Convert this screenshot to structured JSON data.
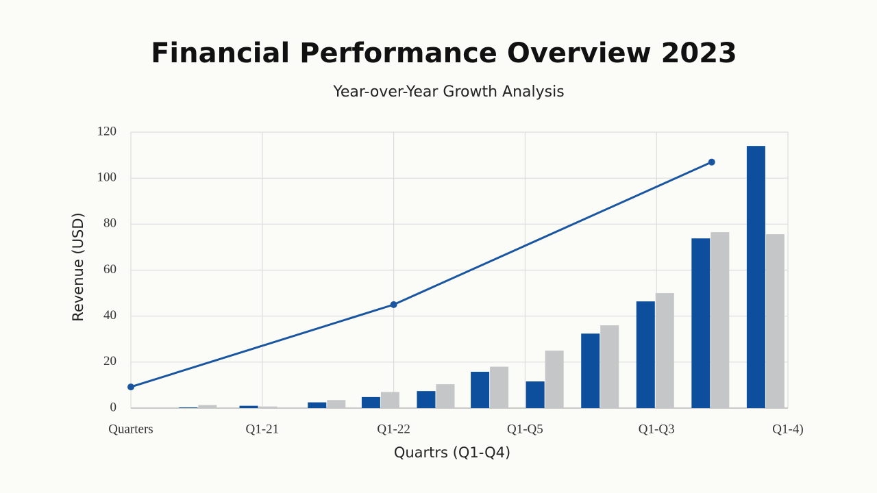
{
  "chart_data": {
    "type": "combo",
    "title": "Financial Performance Overview 2023",
    "subtitle": "Year-over-Year Growth Analysis",
    "y_label": "Revenue (USD)",
    "x_label": "Quartrs (Q1-Q4)",
    "xlim": [
      0,
      5
    ],
    "xticks": [
      {
        "value": 0,
        "label": "Quarters"
      },
      {
        "value": 1,
        "label": "Q1-21"
      },
      {
        "value": 2,
        "label": "Q1-22"
      },
      {
        "value": 3,
        "label": "Q1-Q5"
      },
      {
        "value": 4,
        "label": "Q1-Q3"
      },
      {
        "value": 5,
        "label": "Q1-4)"
      }
    ],
    "ylim": [
      0,
      120
    ],
    "yticks": [
      0,
      20,
      40,
      60,
      80,
      100,
      120
    ],
    "grid": true,
    "series": [
      {
        "type": "bar",
        "color": "#0d4f9c",
        "x": [
          0.51,
          0.97,
          1.49,
          1.9,
          2.32,
          2.73,
          3.15,
          3.57,
          3.99,
          4.41,
          4.83
        ],
        "values": [
          0.3,
          1,
          2.5,
          4.8,
          7.4,
          15.8,
          11.6,
          32.4,
          46.4,
          73.8,
          114
        ]
      },
      {
        "type": "bar",
        "color": "#c4c6c8",
        "x": [
          0.51,
          0.97,
          1.49,
          1.9,
          2.32,
          2.73,
          3.15,
          3.57,
          3.99,
          4.41,
          4.83
        ],
        "values": [
          1.3,
          0.7,
          3.5,
          7,
          10.4,
          18,
          25,
          36,
          50,
          76.5,
          75.6
        ]
      },
      {
        "type": "line",
        "color": "#1a56a0",
        "x": [
          0,
          2,
          4.42
        ],
        "values": [
          9.2,
          45,
          107
        ]
      }
    ]
  }
}
